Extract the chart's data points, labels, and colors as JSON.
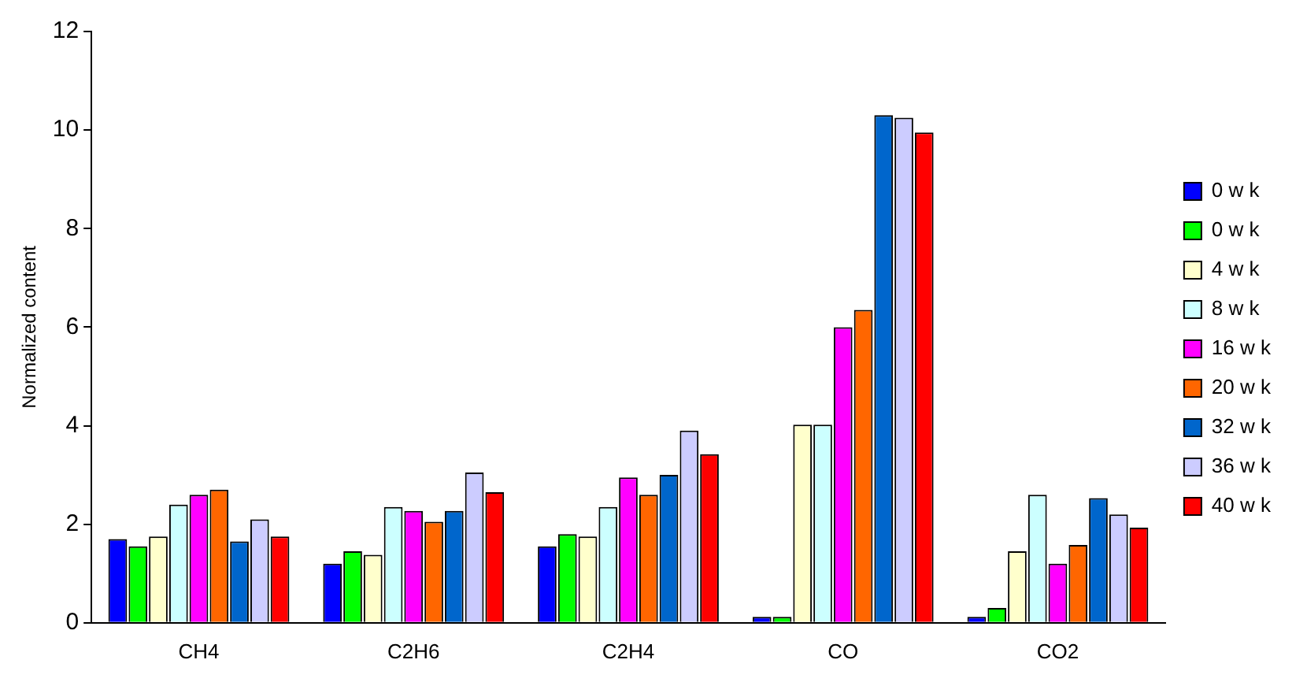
{
  "chart_data": {
    "type": "bar",
    "ylabel": "Normalized content",
    "categories": [
      "CH4",
      "C2H6",
      "C2H4",
      "CO",
      "CO2"
    ],
    "series": [
      {
        "name": "0 w k",
        "color": "#0000ff",
        "values": [
          1.7,
          1.2,
          1.55,
          0.12,
          0.12
        ]
      },
      {
        "name": "0 w k",
        "color": "#00ff00",
        "values": [
          1.55,
          1.45,
          1.8,
          0.12,
          0.3
        ]
      },
      {
        "name": "4 w k",
        "color": "#ffffcc",
        "values": [
          1.75,
          1.38,
          1.75,
          4.02,
          1.45
        ]
      },
      {
        "name": "8 w k",
        "color": "#ccffff",
        "values": [
          2.4,
          2.35,
          2.35,
          4.02,
          2.6
        ]
      },
      {
        "name": "16 w k",
        "color": "#ff00ff",
        "values": [
          2.6,
          2.27,
          2.95,
          6.0,
          1.2
        ]
      },
      {
        "name": "20 w k",
        "color": "#ff6600",
        "values": [
          2.7,
          2.05,
          2.6,
          6.35,
          1.58
        ]
      },
      {
        "name": "32 w k",
        "color": "#0066cc",
        "values": [
          1.65,
          2.27,
          3.0,
          10.3,
          2.53
        ]
      },
      {
        "name": "36 w k",
        "color": "#ccccff",
        "values": [
          2.1,
          3.05,
          3.9,
          10.25,
          2.2
        ]
      },
      {
        "name": "40 w k",
        "color": "#ff0000",
        "values": [
          1.75,
          2.65,
          3.42,
          9.95,
          1.93
        ]
      }
    ],
    "ylim": [
      0,
      12
    ],
    "yticks": [
      0,
      2,
      4,
      6,
      8,
      10,
      12
    ],
    "grid": false,
    "legend": "right"
  }
}
